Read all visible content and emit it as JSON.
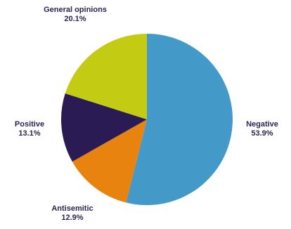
{
  "chart_data": {
    "type": "pie",
    "title": "",
    "slices": [
      {
        "label": "Negative",
        "value": 53.9,
        "display": "53.9%",
        "color": "#4399c8"
      },
      {
        "label": "Antisemitic",
        "value": 12.9,
        "display": "12.9%",
        "color": "#e8830f"
      },
      {
        "label": "Positive",
        "value": 13.1,
        "display": "13.1%",
        "color": "#2a1b55"
      },
      {
        "label": "General opinions",
        "value": 20.1,
        "display": "20.1%",
        "color": "#c3cc12"
      }
    ],
    "start": "top, clockwise",
    "legend": "none (labels placed outside slices)"
  }
}
